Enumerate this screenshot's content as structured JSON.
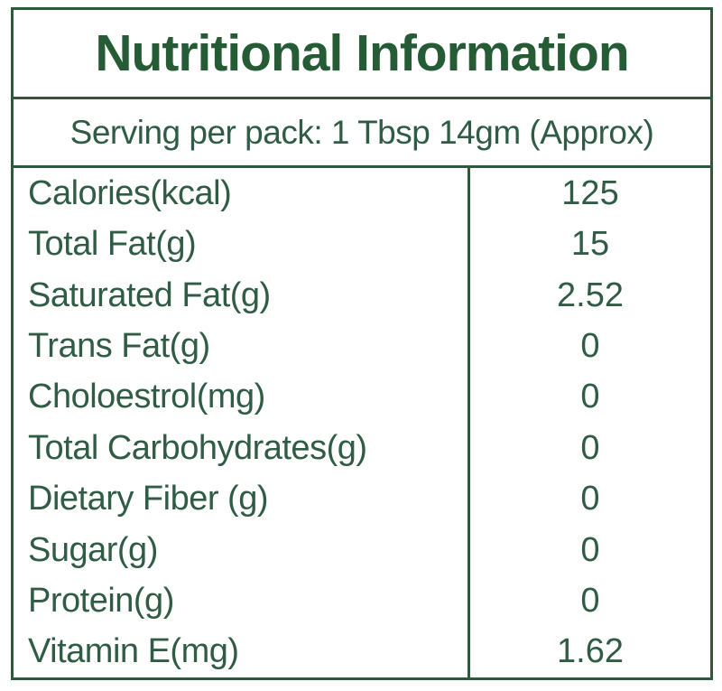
{
  "label": {
    "title": "Nutritional Information",
    "serving_line": "Serving per pack: 1 Tbsp 14gm (Approx)",
    "rows": [
      {
        "name": "Calories(kcal)",
        "value": "125"
      },
      {
        "name": "Total Fat(g)",
        "value": "15"
      },
      {
        "name": "Saturated Fat(g)",
        "value": "2.52"
      },
      {
        "name": "Trans Fat(g)",
        "value": "0"
      },
      {
        "name": "Choloestrol(mg)",
        "value": "0"
      },
      {
        "name": "Total Carbohydrates(g)",
        "value": "0"
      },
      {
        "name": "Dietary Fiber (g)",
        "value": "0"
      },
      {
        "name": "Sugar(g)",
        "value": "0"
      },
      {
        "name": "Protein(g)",
        "value": "0"
      },
      {
        "name": "Vitamin E(mg)",
        "value": "1.62"
      }
    ],
    "colors": {
      "border_green": "#2c5a3c",
      "title_green": "#265c35",
      "text_green": "#305c45",
      "background": "#ffffff"
    }
  }
}
